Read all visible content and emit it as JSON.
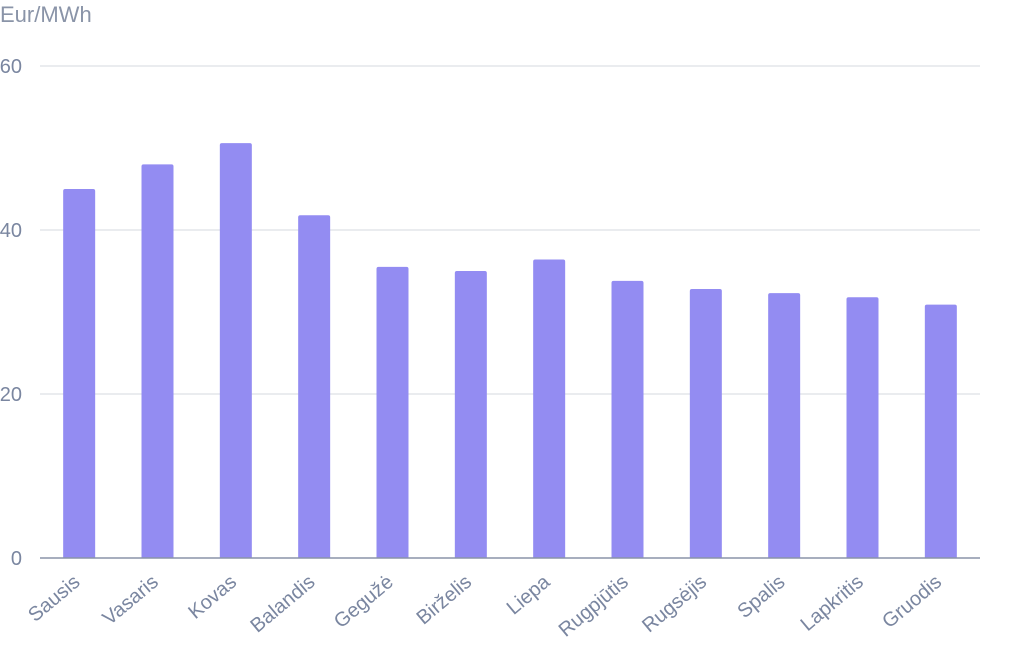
{
  "chart_data": {
    "type": "bar",
    "title": "",
    "ylabel": "Eur/MWh",
    "xlabel": "",
    "categories": [
      "Sausis",
      "Vasaris",
      "Kovas",
      "Balandis",
      "Gegužė",
      "Birželis",
      "Liepa",
      "Rugpjūtis",
      "Rugsėjis",
      "Spalis",
      "Lapkritis",
      "Gruodis"
    ],
    "values": [
      45,
      48,
      50.6,
      41.8,
      35.5,
      35,
      36.4,
      33.8,
      32.8,
      32.3,
      31.8,
      30.9
    ],
    "ylim": [
      0,
      60
    ],
    "yticks": [
      0,
      20,
      40,
      60
    ],
    "grid": true,
    "colors": {
      "bar": "#938cf2",
      "grid": "#e3e5ea",
      "axis": "#8a94a8",
      "text": "#7a86a0"
    }
  }
}
